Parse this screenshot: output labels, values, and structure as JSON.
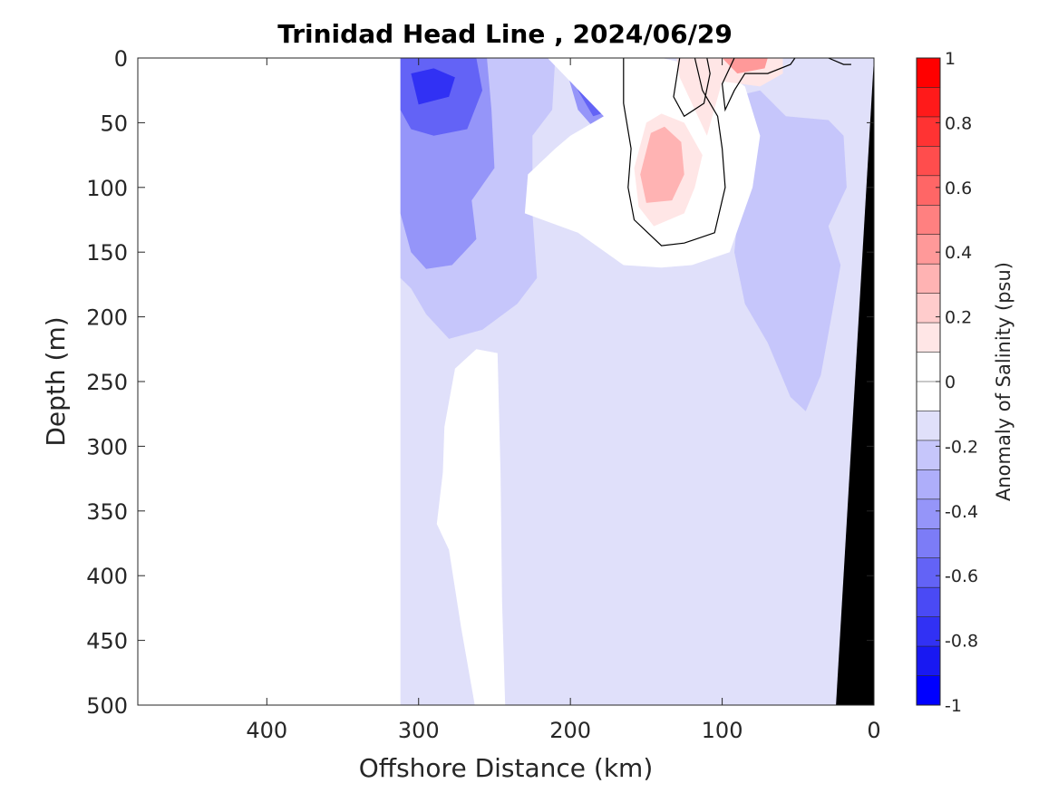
{
  "chart_data": {
    "type": "heatmap",
    "subtype": "filled-contour section",
    "title": "Trinidad Head Line , 2024/06/29",
    "xlabel": "Offshore Distance (km)",
    "ylabel": "Depth (m)",
    "xlim": [
      0,
      485
    ],
    "x_reversed": true,
    "ylim": [
      0,
      500
    ],
    "y_reversed": true,
    "xticks": [
      "400",
      "300",
      "200",
      "100",
      "0"
    ],
    "yticks": [
      "0",
      "50",
      "100",
      "150",
      "200",
      "250",
      "300",
      "350",
      "400",
      "450",
      "500"
    ],
    "colorbar": {
      "label": "Anomaly of Salinity (psu)",
      "range": [
        -1,
        1
      ],
      "interval": 0.1,
      "ticks": [
        "1",
        "0.8",
        "0.6",
        "0.4",
        "0.2",
        "0",
        "-0.2",
        "-0.4",
        "-0.6",
        "-0.8",
        "-1"
      ],
      "colors_high_to_low": [
        "#ff0000",
        "#ff1a1a",
        "#ff3333",
        "#ff4d4d",
        "#ff6666",
        "#ff8080",
        "#ff9999",
        "#ffb3b3",
        "#ffcccc",
        "#ffe6e6",
        "#ffffff",
        "#ffffff",
        "#e0e0fa",
        "#c6c6fb",
        "#aeaefa",
        "#9595f9",
        "#7c7cf7",
        "#6363f6",
        "#4a4af5",
        "#3131f4",
        "#1818f2",
        "#0000ff"
      ]
    },
    "zero_contour_line": true,
    "bathymetry": {
      "color": "#000000",
      "shelf_edge_km_at_500m": 25,
      "shelf_edge_km_at_0m": 0
    },
    "no_data_region_km": [
      312,
      485
    ],
    "regions": [
      {
        "name": "background",
        "level": -0.15,
        "x": [
          312,
          0
        ],
        "y": [
          0,
          500
        ]
      },
      {
        "name": "deep-zero-band",
        "level": 0.0,
        "x": [
          245,
          290
        ],
        "y": [
          225,
          500
        ]
      },
      {
        "name": "shelf-negative",
        "level": -0.25,
        "x": [
          95,
          12
        ],
        "y": [
          20,
          275
        ]
      },
      {
        "name": "upper-negative",
        "level": -0.25,
        "x": [
          312,
          210
        ],
        "y": [
          0,
          225
        ]
      },
      {
        "name": "upper-negative-core",
        "level": -0.45,
        "x": [
          312,
          250
        ],
        "y": [
          0,
          165
        ]
      },
      {
        "name": "surface-minimum",
        "level": -0.8,
        "x": [
          305,
          275
        ],
        "y": [
          10,
          35
        ]
      },
      {
        "name": "surface-negative-east",
        "level": -0.55,
        "x": [
          205,
          160
        ],
        "y": [
          0,
          60
        ]
      },
      {
        "name": "near-zero-midwater",
        "level": 0.0,
        "x": [
          235,
          80
        ],
        "y": [
          20,
          170
        ]
      },
      {
        "name": "positive-core",
        "level": 0.35,
        "x": [
          158,
          112
        ],
        "y": [
          45,
          125
        ]
      },
      {
        "name": "surface-positive",
        "level": 0.45,
        "x": [
          100,
          70
        ],
        "y": [
          0,
          12
        ]
      }
    ]
  }
}
